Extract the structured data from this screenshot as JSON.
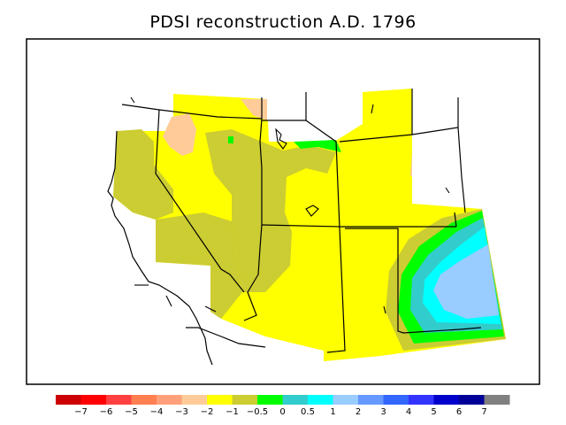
{
  "title": "PDSI reconstruction A.D. 1796",
  "legend": {
    "colors": [
      "#cc0000",
      "#ff0000",
      "#ff4040",
      "#ff7f50",
      "#ffa07a",
      "#ffcc99",
      "#ffff00",
      "#cccc33",
      "#00ff00",
      "#33cccc",
      "#00ffff",
      "#99ccff",
      "#6699ff",
      "#3366ff",
      "#3333ff",
      "#0000cc",
      "#000099",
      "#808080"
    ],
    "tick_labels": [
      "−7",
      "−6",
      "−5",
      "−4",
      "−3",
      "−2",
      "−1",
      "−0.5",
      "0",
      "0.5",
      "1",
      "2",
      "3",
      "4",
      "5",
      "6",
      "7"
    ]
  },
  "map_colors": {
    "frame": "#000000",
    "yellow": "#ffff00",
    "olive": "#cccc33",
    "peach": "#ffcc99",
    "green": "#00ff00",
    "teal": "#33cccc",
    "cyan": "#00ffff",
    "lightblue": "#99ccff"
  }
}
